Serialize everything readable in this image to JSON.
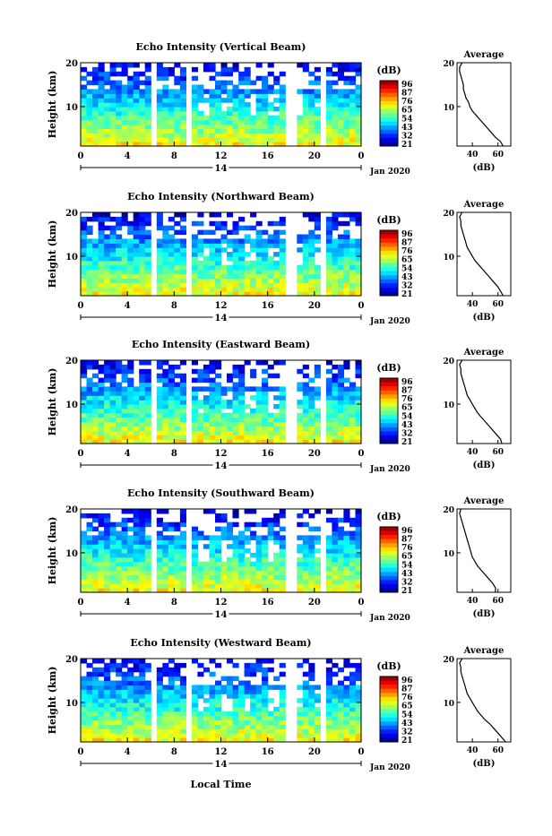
{
  "common": {
    "ylabel": "Height (km)",
    "cbar_unit": "(dB)",
    "cbar_ticks": [
      "96",
      "87",
      "76",
      "65",
      "54",
      "43",
      "32",
      "21"
    ],
    "x_ticks": [
      "0",
      "4",
      "8",
      "12",
      "16",
      "20",
      "0"
    ],
    "date_marker": "14",
    "date_label": "Jan 2020",
    "avg_title": "Average",
    "avg_xlabel": "(dB)",
    "footer_xlabel": "Local Time"
  },
  "chart_data": [
    {
      "type": "heatmap",
      "title": "Echo Intensity (Vertical Beam)",
      "ylabel": "Height (km)",
      "xlim": [
        0,
        24
      ],
      "ylim": [
        1,
        20
      ],
      "x_ticks": [
        0,
        4,
        8,
        12,
        16,
        20,
        24
      ],
      "y_ticks": [
        10,
        20
      ],
      "colorbar": {
        "label": "(dB)",
        "ticks": [
          96,
          87,
          76,
          65,
          54,
          43,
          32,
          21
        ]
      },
      "data_gaps_hours": [
        [
          5.8,
          6.0
        ],
        [
          8.9,
          9.2
        ],
        [
          17.7,
          18.1
        ],
        [
          20.5,
          20.8
        ]
      ],
      "average_profile": {
        "title": "Average",
        "xlabel": "(dB)",
        "x_ticks": [
          40,
          60
        ],
        "heights_km": [
          1,
          2,
          3,
          4,
          5,
          6,
          7,
          8,
          9,
          10,
          11,
          12,
          13,
          14,
          15,
          16,
          17,
          18,
          19,
          20
        ],
        "values_db": [
          64,
          62,
          58,
          55,
          52,
          49,
          46,
          43,
          40,
          38,
          37,
          35,
          34,
          33,
          33,
          32,
          31,
          30,
          30,
          32
        ]
      }
    },
    {
      "type": "heatmap",
      "title": "Echo Intensity (Northward Beam)",
      "ylabel": "Height (km)",
      "xlim": [
        0,
        24
      ],
      "ylim": [
        1,
        20
      ],
      "x_ticks": [
        0,
        4,
        8,
        12,
        16,
        20,
        24
      ],
      "y_ticks": [
        10,
        20
      ],
      "colorbar": {
        "label": "(dB)",
        "ticks": [
          96,
          87,
          76,
          65,
          54,
          43,
          32,
          21
        ]
      },
      "data_gaps_hours": [
        [
          5.8,
          6.0
        ],
        [
          8.9,
          9.2
        ],
        [
          17.7,
          18.1
        ],
        [
          20.5,
          20.8
        ]
      ],
      "average_profile": {
        "title": "Average",
        "xlabel": "(dB)",
        "x_ticks": [
          40,
          60
        ],
        "heights_km": [
          1,
          2,
          3,
          4,
          5,
          6,
          7,
          8,
          9,
          10,
          11,
          12,
          13,
          14,
          15,
          16,
          17,
          18,
          19,
          20
        ],
        "values_db": [
          64,
          62,
          60,
          57,
          54,
          51,
          48,
          45,
          42,
          40,
          38,
          36,
          35,
          34,
          33,
          32,
          31,
          31,
          30,
          32
        ]
      }
    },
    {
      "type": "heatmap",
      "title": "Echo Intensity (Eastward Beam)",
      "ylabel": "Height (km)",
      "xlim": [
        0,
        24
      ],
      "ylim": [
        1,
        20
      ],
      "x_ticks": [
        0,
        4,
        8,
        12,
        16,
        20,
        24
      ],
      "y_ticks": [
        10,
        20
      ],
      "colorbar": {
        "label": "(dB)",
        "ticks": [
          96,
          87,
          76,
          65,
          54,
          43,
          32,
          21
        ]
      },
      "data_gaps_hours": [
        [
          5.8,
          6.0
        ],
        [
          8.9,
          9.2
        ],
        [
          17.7,
          18.1
        ],
        [
          20.5,
          20.8
        ]
      ],
      "average_profile": {
        "title": "Average",
        "xlabel": "(dB)",
        "x_ticks": [
          40,
          60
        ],
        "heights_km": [
          1,
          2,
          3,
          4,
          5,
          6,
          7,
          8,
          9,
          10,
          11,
          12,
          13,
          14,
          15,
          16,
          17,
          18,
          19,
          20
        ],
        "values_db": [
          63,
          62,
          59,
          56,
          53,
          50,
          47,
          44,
          42,
          40,
          38,
          36,
          35,
          34,
          33,
          32,
          31,
          31,
          30,
          32
        ]
      }
    },
    {
      "type": "heatmap",
      "title": "Echo Intensity (Southward Beam)",
      "ylabel": "Height (km)",
      "xlim": [
        0,
        24
      ],
      "ylim": [
        1,
        20
      ],
      "x_ticks": [
        0,
        4,
        8,
        12,
        16,
        20,
        24
      ],
      "y_ticks": [
        10,
        20
      ],
      "colorbar": {
        "label": "(dB)",
        "ticks": [
          96,
          87,
          76,
          65,
          54,
          43,
          32,
          21
        ]
      },
      "data_gaps_hours": [
        [
          5.8,
          6.0
        ],
        [
          8.9,
          9.2
        ],
        [
          17.7,
          18.1
        ],
        [
          20.5,
          20.8
        ]
      ],
      "average_profile": {
        "title": "Average",
        "xlabel": "(dB)",
        "x_ticks": [
          40,
          60
        ],
        "heights_km": [
          1,
          2,
          3,
          4,
          5,
          6,
          7,
          8,
          9,
          10,
          11,
          12,
          13,
          14,
          15,
          16,
          17,
          18,
          19,
          20
        ],
        "values_db": [
          58,
          58,
          56,
          53,
          50,
          47,
          44,
          42,
          40,
          39,
          38,
          37,
          36,
          35,
          34,
          33,
          32,
          31,
          30,
          31
        ]
      }
    },
    {
      "type": "heatmap",
      "title": "Echo Intensity (Westward Beam)",
      "ylabel": "Height (km)",
      "xlabel": "Local Time",
      "xlim": [
        0,
        24
      ],
      "ylim": [
        1,
        20
      ],
      "x_ticks": [
        0,
        4,
        8,
        12,
        16,
        20,
        24
      ],
      "y_ticks": [
        10,
        20
      ],
      "colorbar": {
        "label": "(dB)",
        "ticks": [
          96,
          87,
          76,
          65,
          54,
          43,
          32,
          21
        ]
      },
      "data_gaps_hours": [
        [
          5.8,
          6.0
        ],
        [
          8.9,
          9.2
        ],
        [
          17.7,
          18.1
        ],
        [
          20.5,
          20.8
        ]
      ],
      "average_profile": {
        "title": "Average",
        "xlabel": "(dB)",
        "x_ticks": [
          40,
          60
        ],
        "heights_km": [
          1,
          2,
          3,
          4,
          5,
          6,
          7,
          8,
          9,
          10,
          11,
          12,
          13,
          14,
          15,
          16,
          17,
          18,
          19,
          20
        ],
        "values_db": [
          66,
          63,
          60,
          57,
          54,
          50,
          47,
          44,
          42,
          40,
          38,
          36,
          35,
          34,
          33,
          32,
          31,
          31,
          30,
          32
        ]
      }
    }
  ]
}
